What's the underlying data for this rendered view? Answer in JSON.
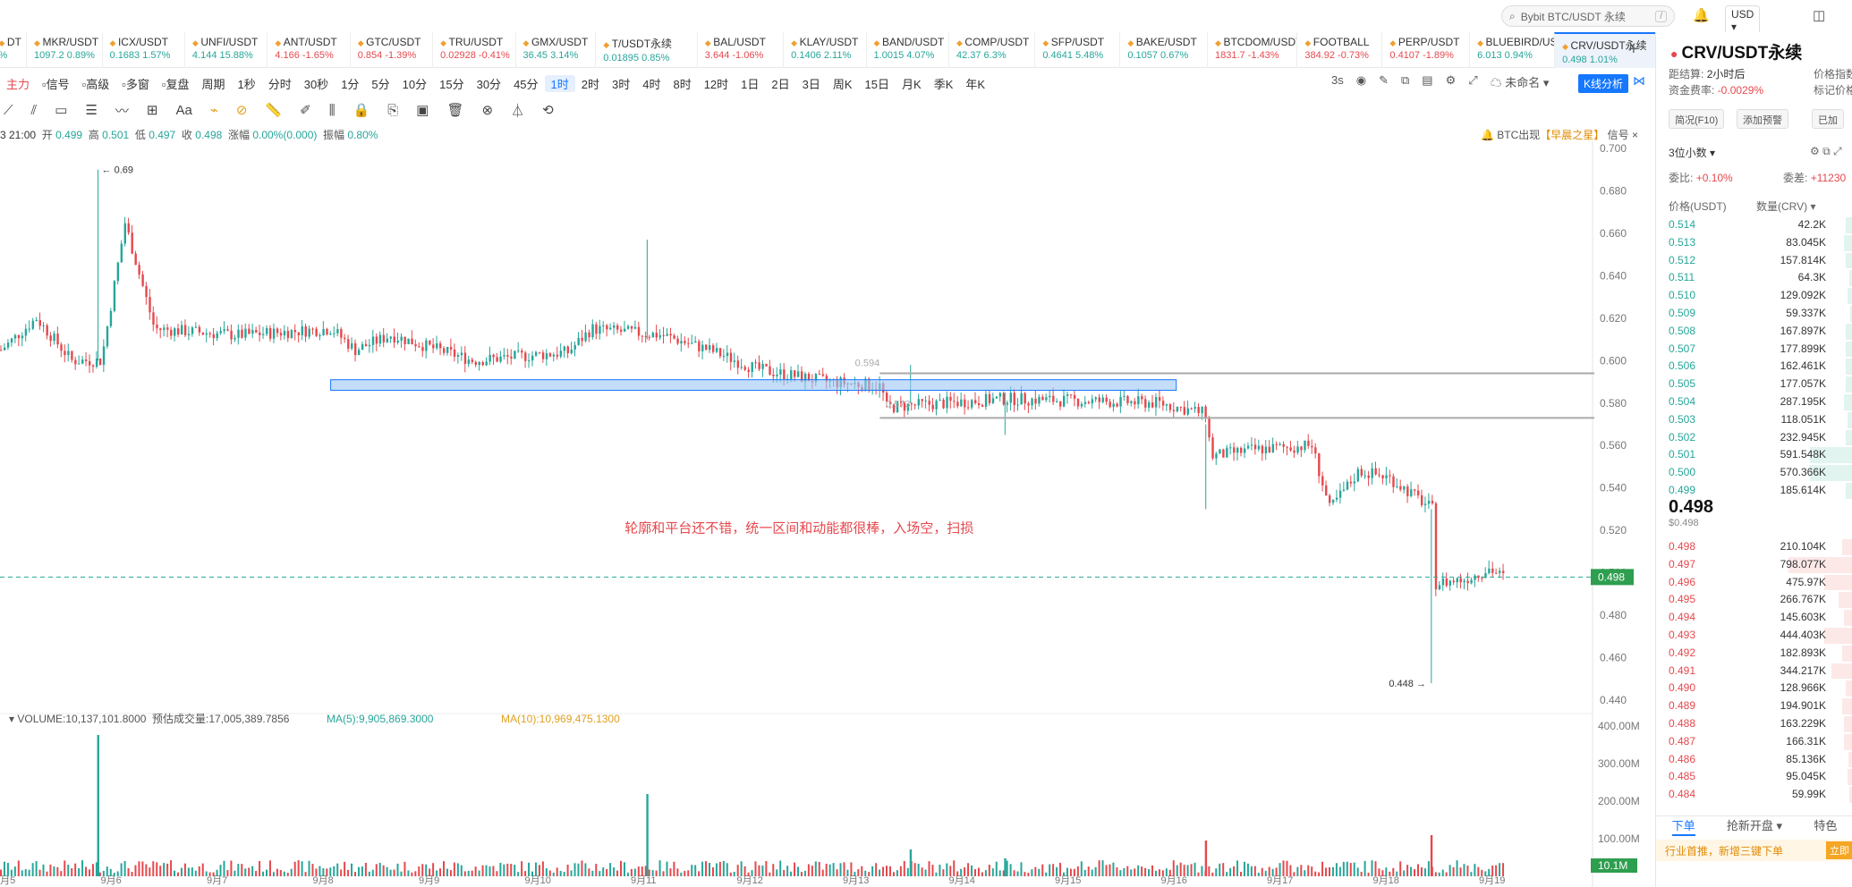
{
  "header": {
    "search_placeholder": "Bybit BTC/USDT 永续",
    "search_kbd": "/",
    "currency": "USD"
  },
  "tickers": [
    {
      "sym": "DT",
      "px": "",
      "chg": "%",
      "dir": "up"
    },
    {
      "sym": "MKR/USDT",
      "px": "1097.2",
      "chg": "0.89%",
      "dir": "up"
    },
    {
      "sym": "ICX/USDT",
      "px": "0.1683",
      "chg": "1.57%",
      "dir": "up"
    },
    {
      "sym": "UNFI/USDT",
      "px": "4.144",
      "chg": "15.88%",
      "dir": "up"
    },
    {
      "sym": "ANT/USDT",
      "px": "4.166",
      "chg": "-1.65%",
      "dir": "dn"
    },
    {
      "sym": "GTC/USDT",
      "px": "0.854",
      "chg": "-1.39%",
      "dir": "dn"
    },
    {
      "sym": "TRU/USDT",
      "px": "0.02928",
      "chg": "-0.41%",
      "dir": "dn"
    },
    {
      "sym": "GMX/USDT",
      "px": "36.45",
      "chg": "3.14%",
      "dir": "up"
    },
    {
      "sym": "T/USDT永续",
      "px": "0.01895",
      "chg": "0.85%",
      "dir": "up"
    },
    {
      "sym": "BAL/USDT",
      "px": "3.644",
      "chg": "-1.06%",
      "dir": "dn"
    },
    {
      "sym": "KLAY/USDT",
      "px": "0.1406",
      "chg": "2.11%",
      "dir": "up"
    },
    {
      "sym": "BAND/USDT",
      "px": "1.0015",
      "chg": "4.07%",
      "dir": "up"
    },
    {
      "sym": "COMP/USDT",
      "px": "42.37",
      "chg": "6.3%",
      "dir": "up"
    },
    {
      "sym": "SFP/USDT",
      "px": "0.4641",
      "chg": "5.48%",
      "dir": "up"
    },
    {
      "sym": "BAKE/USDT",
      "px": "0.1057",
      "chg": "0.67%",
      "dir": "up"
    },
    {
      "sym": "BTCDOM/USDT",
      "px": "1831.7",
      "chg": "-1.43%",
      "dir": "dn"
    },
    {
      "sym": "FOOTBALL",
      "px": "384.92",
      "chg": "-0.73%",
      "dir": "dn"
    },
    {
      "sym": "PERP/USDT",
      "px": "0.4107",
      "chg": "-1.89%",
      "dir": "dn"
    },
    {
      "sym": "BLUEBIRD/USDT",
      "px": "6.013",
      "chg": "0.94%",
      "dir": "up"
    },
    {
      "sym": "CRV/USDT永续",
      "px": "0.498",
      "chg": "1.01%",
      "dir": "up"
    }
  ],
  "toolbar": {
    "left": [
      "主力",
      "信号",
      "高级",
      "多窗",
      "复盘",
      "周期"
    ],
    "periods": [
      "1秒",
      "分时",
      "30秒",
      "1分",
      "5分",
      "10分",
      "15分",
      "30分",
      "45分",
      "1时",
      "2时",
      "3时",
      "4时",
      "8时",
      "12时",
      "1日",
      "2日",
      "3日",
      "周K",
      "15日",
      "月K",
      "季K",
      "年K"
    ],
    "active_period": "1时",
    "refresh": "3s",
    "unnamed": "未命名",
    "kline_btn": "K线分析"
  },
  "info": {
    "time": "3 21:00",
    "open_l": "开",
    "open": "0.499",
    "high_l": "高",
    "high": "0.501",
    "low_l": "低",
    "low": "0.497",
    "close_l": "收",
    "close": "0.498",
    "chg_l": "涨幅",
    "chg": "0.00%(0.000)",
    "amp_l": "振幅",
    "amp": "0.80%"
  },
  "signal": {
    "text": "BTC出现",
    "tag": "【早晨之星】",
    "suffix": "信号"
  },
  "annotation": "轮廓和平台还不错，统一区间和动能都很棒，入场空，扫损",
  "volume_info": {
    "label": "VOLUME:10,137,101.8000",
    "est": "预估成交量:17,005,389.7856",
    "ma5": "MA(5):9,905,869.3000",
    "ma10": "MA(10):10,969,475.1300"
  },
  "chart_data": {
    "type": "candlestick",
    "symbol": "CRV/USDT",
    "interval": "1时",
    "ylim": [
      0.44,
      0.7
    ],
    "y_ticks": [
      "0.700",
      "0.680",
      "0.660",
      "0.640",
      "0.620",
      "0.600",
      "0.580",
      "0.560",
      "0.540",
      "0.520",
      "0.500",
      "0.480",
      "0.460",
      "0.440"
    ],
    "x_ticks": [
      "9月5",
      "9月6",
      "9月7",
      "9月8",
      "9月9",
      "9月10",
      "9月11",
      "9月12",
      "9月13",
      "9月14",
      "9月15",
      "9月16",
      "9月17",
      "9月18",
      "9月19"
    ],
    "last_price": "0.498",
    "high_marker": "0.69",
    "low_marker": "0.448",
    "box_label_top": "0.594",
    "box_label_bottom": "0.573",
    "volume_ticks": [
      "400.00M",
      "300.00M",
      "200.00M",
      "100.00M"
    ],
    "volume_last": "10.1M",
    "trend": [
      [
        0,
        0.605
      ],
      [
        30,
        0.62
      ],
      [
        60,
        0.6
      ],
      [
        85,
        0.6
      ],
      [
        105,
        0.665
      ],
      [
        130,
        0.615
      ],
      [
        200,
        0.612
      ],
      [
        280,
        0.615
      ],
      [
        300,
        0.605
      ],
      [
        330,
        0.612
      ],
      [
        400,
        0.6
      ],
      [
        480,
        0.604
      ],
      [
        500,
        0.615
      ],
      [
        560,
        0.612
      ],
      [
        600,
        0.605
      ],
      [
        640,
        0.596
      ],
      [
        700,
        0.59
      ],
      [
        745,
        0.588
      ],
      [
        750,
        0.578
      ],
      [
        850,
        0.582
      ],
      [
        980,
        0.58
      ],
      [
        1020,
        0.575
      ],
      [
        1025,
        0.555
      ],
      [
        1060,
        0.558
      ],
      [
        1110,
        0.56
      ],
      [
        1125,
        0.53
      ],
      [
        1150,
        0.548
      ],
      [
        1175,
        0.545
      ],
      [
        1200,
        0.535
      ],
      [
        1212,
        0.53
      ],
      [
        1215,
        0.495
      ],
      [
        1240,
        0.497
      ],
      [
        1260,
        0.502
      ],
      [
        1272,
        0.498
      ]
    ]
  },
  "right": {
    "title": "CRV/USDT永续",
    "rows": [
      {
        "k": "距结算:",
        "v": "2小时后"
      },
      {
        "k": "资金费率:",
        "v": "-0.0029%"
      }
    ],
    "rows_r": [
      "价格指数",
      "标记价格"
    ],
    "btns": [
      "简况(F10)",
      "添加预警",
      "已加"
    ],
    "decimals": "3位小数",
    "weibi_l": "委比:",
    "weibi": "+0.10%",
    "weicha_l": "委差:",
    "weicha": "+11230",
    "col_price": "价格(USDT)",
    "col_qty": "数量(CRV)",
    "bids": [
      [
        "0.514",
        "42.2K",
        0.1
      ],
      [
        "0.513",
        "83.045K",
        0.12
      ],
      [
        "0.512",
        "157.814K",
        0.1
      ],
      [
        "0.511",
        "64.3K",
        0.05
      ],
      [
        "0.510",
        "129.092K",
        0.08
      ],
      [
        "0.509",
        "59.337K",
        0.04
      ],
      [
        "0.508",
        "167.897K",
        0.1
      ],
      [
        "0.507",
        "177.899K",
        0.1
      ],
      [
        "0.506",
        "162.461K",
        0.1
      ],
      [
        "0.505",
        "177.057K",
        0.1
      ],
      [
        "0.504",
        "287.195K",
        0.12
      ],
      [
        "0.503",
        "118.051K",
        0.08
      ],
      [
        "0.502",
        "232.945K",
        0.1
      ],
      [
        "0.501",
        "591.548K",
        0.6
      ],
      [
        "0.500",
        "570.366K",
        0.6
      ],
      [
        "0.499",
        "185.614K",
        0.1
      ]
    ],
    "mid": "0.498",
    "mid_usd": "$0.498",
    "asks": [
      [
        "0.498",
        "210.104K",
        0.15
      ],
      [
        "0.497",
        "798.077K",
        0.9
      ],
      [
        "0.496",
        "475.97K",
        0.4
      ],
      [
        "0.495",
        "266.767K",
        0.2
      ],
      [
        "0.494",
        "145.603K",
        0.12
      ],
      [
        "0.493",
        "444.403K",
        0.4
      ],
      [
        "0.492",
        "182.893K",
        0.15
      ],
      [
        "0.491",
        "344.217K",
        0.3
      ],
      [
        "0.490",
        "128.966K",
        0.1
      ],
      [
        "0.489",
        "194.901K",
        0.15
      ],
      [
        "0.488",
        "163.229K",
        0.12
      ],
      [
        "0.487",
        "166.31K",
        0.12
      ],
      [
        "0.486",
        "85.136K",
        0.06
      ],
      [
        "0.485",
        "95.045K",
        0.08
      ],
      [
        "0.484",
        "59.99K",
        0.05
      ]
    ],
    "tabs": [
      "下单",
      "抢新开盘",
      "特色"
    ],
    "promo": "行业首推，新增三键下单",
    "promo_btn": "立即"
  },
  "colors": {
    "up": "#26a69a",
    "down": "#e5484d",
    "accent": "#1677ff"
  }
}
